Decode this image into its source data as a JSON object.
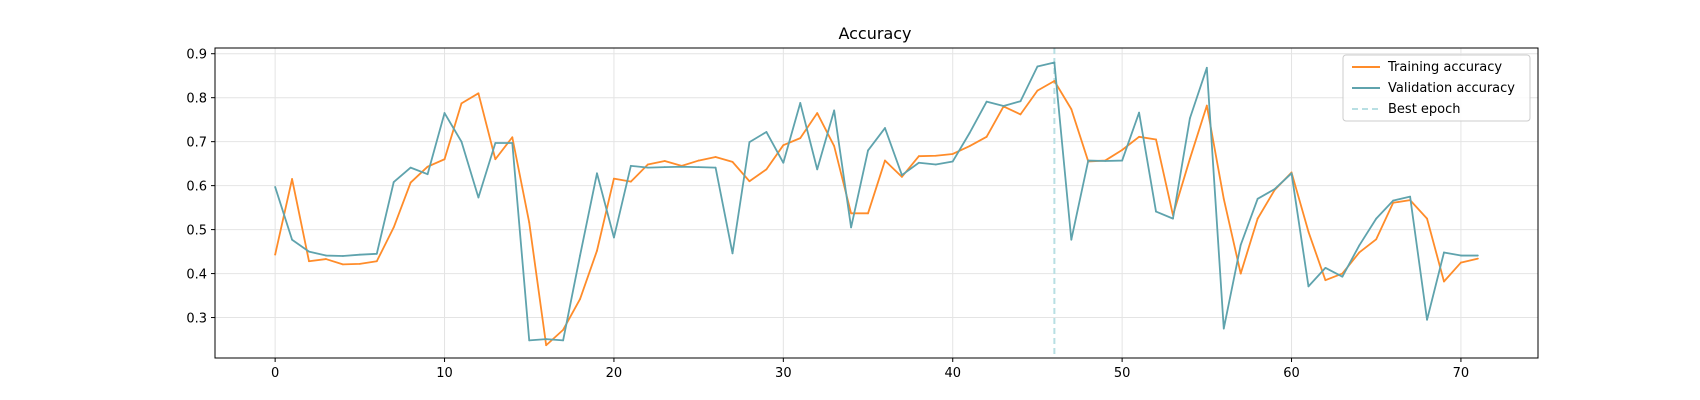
{
  "chart_data": {
    "type": "line",
    "title": "Accuracy",
    "xlabel": "",
    "ylabel": "",
    "xlim": [
      -3.55,
      74.55
    ],
    "ylim": [
      0.208,
      0.913
    ],
    "xticks": [
      0,
      10,
      20,
      30,
      40,
      50,
      60,
      70
    ],
    "yticks": [
      0.3,
      0.4,
      0.5,
      0.6,
      0.7,
      0.8,
      0.9
    ],
    "grid": true,
    "legend_position": "top-right",
    "series": [
      {
        "name": "Training accuracy",
        "color": "#ff8c2a",
        "values": [
          0.443,
          0.615,
          0.428,
          0.433,
          0.421,
          0.422,
          0.428,
          0.505,
          0.607,
          0.643,
          0.66,
          0.787,
          0.81,
          0.66,
          0.71,
          0.516,
          0.237,
          0.272,
          0.342,
          0.452,
          0.616,
          0.609,
          0.648,
          0.656,
          0.645,
          0.657,
          0.665,
          0.654,
          0.61,
          0.637,
          0.692,
          0.708,
          0.765,
          0.69,
          0.537,
          0.537,
          0.657,
          0.62,
          0.667,
          0.668,
          0.672,
          0.69,
          0.711,
          0.78,
          0.762,
          0.816,
          0.838,
          0.774,
          0.655,
          0.657,
          0.681,
          0.711,
          0.705,
          0.533,
          0.661,
          0.782,
          0.57,
          0.4,
          0.525,
          0.59,
          0.63,
          0.495,
          0.385,
          0.4,
          0.448,
          0.478,
          0.561,
          0.567,
          0.525,
          0.382,
          0.425,
          0.434
        ]
      },
      {
        "name": "Validation accuracy",
        "color": "#5fa3ad",
        "values": [
          0.597,
          0.477,
          0.45,
          0.441,
          0.44,
          0.443,
          0.445,
          0.608,
          0.641,
          0.626,
          0.765,
          0.7,
          0.573,
          0.697,
          0.697,
          0.248,
          0.251,
          0.248,
          0.441,
          0.628,
          0.482,
          0.645,
          0.641,
          0.642,
          0.643,
          0.642,
          0.641,
          0.446,
          0.699,
          0.722,
          0.652,
          0.788,
          0.637,
          0.771,
          0.505,
          0.68,
          0.731,
          0.624,
          0.652,
          0.648,
          0.655,
          0.72,
          0.791,
          0.781,
          0.792,
          0.871,
          0.88,
          0.477,
          0.657,
          0.656,
          0.657,
          0.766,
          0.541,
          0.525,
          0.753,
          0.868,
          0.275,
          0.465,
          0.57,
          0.592,
          0.628,
          0.371,
          0.413,
          0.393,
          0.464,
          0.525,
          0.566,
          0.575,
          0.295,
          0.448,
          0.441,
          0.441
        ]
      }
    ],
    "best_epoch": {
      "label": "Best epoch",
      "x": 46,
      "color": "#b8dfe3"
    }
  }
}
